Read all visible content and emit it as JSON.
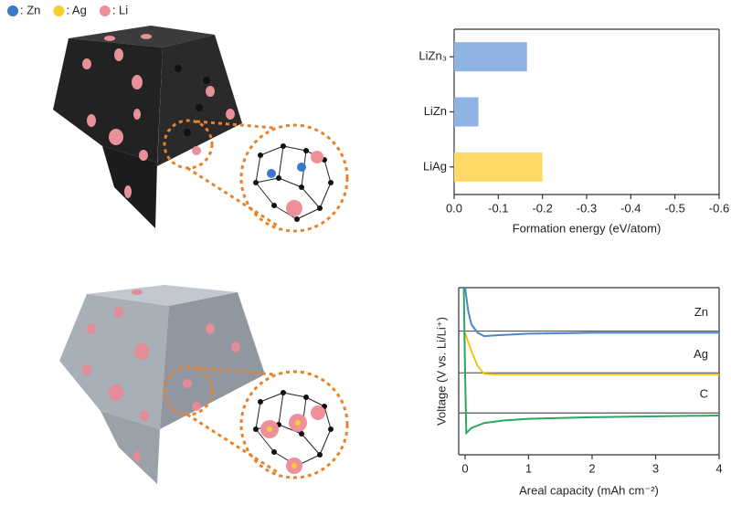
{
  "illustration": {
    "legend": [
      {
        "label": ": Zn",
        "color": "#3a78c9"
      },
      {
        "label": ": Ag",
        "color": "#f2cf2e"
      },
      {
        "label": ": Li",
        "color": "#ee8f9a"
      }
    ]
  },
  "chart_data": [
    {
      "type": "bar",
      "orientation": "horizontal",
      "categories": [
        "LiZn₃",
        "LiZn",
        "LiAg"
      ],
      "values": [
        -0.165,
        -0.055,
        -0.2
      ],
      "colors": [
        "#8fb4e3",
        "#8fb4e3",
        "#ffd966"
      ],
      "xlabel": "Formation energy (eV/atom)",
      "xlim": [
        0,
        -0.6
      ],
      "xticks": [
        {
          "value": 0,
          "label": "0.0"
        },
        -0.1,
        -0.2,
        -0.3,
        -0.4,
        -0.5,
        -0.6
      ]
    },
    {
      "type": "line",
      "xlabel": "Areal capacity (mAh cm⁻²)",
      "ylabel": "Voltage (V vs. Li/Li⁺)",
      "xlim": [
        -0.1,
        4
      ],
      "xticks": [
        0,
        1,
        2,
        3,
        4
      ],
      "ylim": [
        0,
        10
      ],
      "series": [
        {
          "name": "Zn",
          "color": "#4f86c6",
          "reference": 7.4,
          "x": [
            0,
            0.05,
            0.1,
            0.2,
            0.3,
            0.5,
            1,
            2,
            3,
            4
          ],
          "values": [
            10,
            8.6,
            7.8,
            7.3,
            7.1,
            7.15,
            7.25,
            7.3,
            7.3,
            7.3
          ]
        },
        {
          "name": "Ag",
          "color": "#f2c50f",
          "reference": 4.9,
          "x": [
            0,
            0.1,
            0.2,
            0.3,
            0.5,
            1,
            2,
            3,
            4
          ],
          "values": [
            7.3,
            6.2,
            5.3,
            4.85,
            4.8,
            4.8,
            4.8,
            4.8,
            4.8
          ]
        },
        {
          "name": "C",
          "color": "#2aa860",
          "reference": 2.5,
          "x": [
            -0.02,
            0,
            0.02,
            0.1,
            0.3,
            0.6,
            1,
            2,
            3,
            4
          ],
          "values": [
            10,
            5,
            1.3,
            1.6,
            1.9,
            2.05,
            2.15,
            2.25,
            2.3,
            2.35
          ]
        }
      ]
    }
  ]
}
